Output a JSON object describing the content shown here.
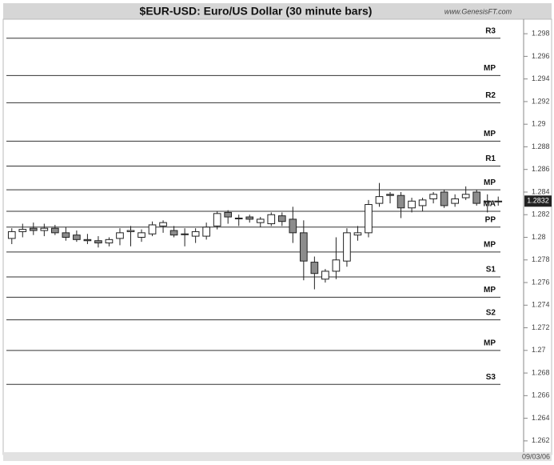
{
  "chart_data": {
    "type": "candlestick",
    "title": "$EUR-USD:  Euro/US Dollar  (30 minute bars)",
    "watermark": "www.GenesisFT.com",
    "date_label": "09/03/06",
    "categories": [
      null,
      null,
      null,
      null,
      null,
      null,
      null,
      null,
      null,
      null,
      null,
      null,
      null,
      null,
      null,
      null,
      null,
      null,
      null,
      null,
      null,
      null,
      null,
      null,
      null,
      null,
      null,
      null,
      null,
      null,
      null,
      null,
      null,
      null,
      null,
      null,
      null,
      null,
      null,
      null,
      null,
      null,
      null,
      null,
      null,
      null
    ],
    "open": [
      1.2799,
      1.2805,
      1.2808,
      1.2806,
      1.2808,
      1.2804,
      1.2802,
      1.2798,
      1.2797,
      1.2795,
      1.2799,
      1.2805,
      1.28,
      1.2803,
      1.281,
      1.2806,
      1.2803,
      1.2801,
      1.2801,
      1.281,
      1.2822,
      1.2817,
      1.2818,
      1.2813,
      1.2812,
      1.2819,
      1.2816,
      1.2804,
      1.2778,
      1.2763,
      1.277,
      1.2779,
      1.2802,
      1.2804,
      1.283,
      1.2838,
      1.2837,
      1.2826,
      1.2828,
      1.2834,
      1.284,
      1.283,
      1.2835,
      1.284,
      1.2832,
      1.2832
    ],
    "high": [
      1.2808,
      1.2812,
      1.2813,
      1.2812,
      1.2811,
      1.2809,
      1.2806,
      1.2803,
      1.2801,
      1.28,
      1.2808,
      1.281,
      1.2807,
      1.2814,
      1.2815,
      1.281,
      1.2808,
      1.2808,
      1.2813,
      1.2823,
      1.2824,
      1.282,
      1.282,
      1.2818,
      1.2822,
      1.2822,
      1.2827,
      1.2815,
      1.2783,
      1.2772,
      1.28,
      1.2808,
      1.281,
      1.2833,
      1.2848,
      1.284,
      1.284,
      1.2835,
      1.2835,
      1.284,
      1.2842,
      1.2838,
      1.2845,
      1.2842,
      1.2838,
      1.2836
    ],
    "low": [
      1.2794,
      1.28,
      1.2802,
      1.2801,
      1.2802,
      1.2797,
      1.2796,
      1.2794,
      1.2791,
      1.2792,
      1.2793,
      1.2792,
      1.2796,
      1.2801,
      1.2804,
      1.28,
      1.2792,
      1.2795,
      1.2798,
      1.2807,
      1.2812,
      1.281,
      1.2813,
      1.2809,
      1.281,
      1.281,
      1.2795,
      1.2762,
      1.2754,
      1.276,
      1.2763,
      1.2774,
      1.2797,
      1.28,
      1.2827,
      1.283,
      1.2817,
      1.2822,
      1.2823,
      1.283,
      1.2826,
      1.2827,
      1.2833,
      1.2828,
      1.2822,
      1.2828
    ],
    "close": [
      1.2805,
      1.2807,
      1.2806,
      1.2808,
      1.2804,
      1.28,
      1.2798,
      1.2797,
      1.2795,
      1.2798,
      1.2804,
      1.2806,
      1.2804,
      1.2811,
      1.2813,
      1.2802,
      1.2803,
      1.2805,
      1.2809,
      1.2821,
      1.2818,
      1.2817,
      1.2816,
      1.2816,
      1.282,
      1.2814,
      1.2804,
      1.2779,
      1.2768,
      1.277,
      1.278,
      1.2804,
      1.2804,
      1.2829,
      1.2836,
      1.2837,
      1.2826,
      1.2832,
      1.2833,
      1.2838,
      1.2828,
      1.2834,
      1.2838,
      1.283,
      1.2832,
      1.2832
    ],
    "up_color": "#ffffff",
    "down_color": "#8c8c8c",
    "levels": [
      {
        "label": "R3",
        "value": 1.2976
      },
      {
        "label": "MP",
        "value": 1.2943
      },
      {
        "label": "R2",
        "value": 1.2919
      },
      {
        "label": "MP",
        "value": 1.2885
      },
      {
        "label": "R1",
        "value": 1.2863
      },
      {
        "label": "MP",
        "value": 1.2842
      },
      {
        "label": "MA",
        "value": 1.2823
      },
      {
        "label": "PP",
        "value": 1.2809
      },
      {
        "label": "MP",
        "value": 1.2787
      },
      {
        "label": "S1",
        "value": 1.2765
      },
      {
        "label": "MP",
        "value": 1.2747
      },
      {
        "label": "S2",
        "value": 1.2727
      },
      {
        "label": "MP",
        "value": 1.27
      },
      {
        "label": "S3",
        "value": 1.267
      }
    ],
    "last_price": 1.2832,
    "ylim": [
      1.261,
      1.299
    ],
    "yticks": [
      1.298,
      1.296,
      1.294,
      1.292,
      1.29,
      1.288,
      1.286,
      1.284,
      1.282,
      1.28,
      1.278,
      1.276,
      1.274,
      1.272,
      1.27,
      1.268,
      1.266,
      1.264,
      1.262
    ]
  }
}
